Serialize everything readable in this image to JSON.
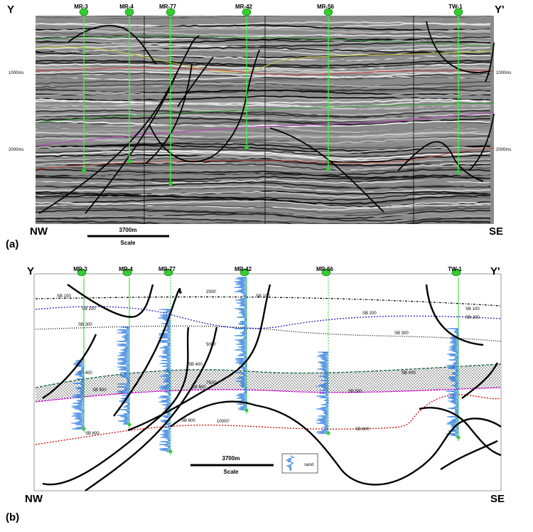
{
  "wells": [
    "MR-3",
    "MR-4",
    "MR-77",
    "MR-42",
    "MR-56",
    "TW-1"
  ],
  "panel_a": {
    "label": "(a)",
    "left_end": "Y",
    "right_end": "Y'",
    "time_labels": [
      "1000ms",
      "2000ms"
    ],
    "left_dir": "NW",
    "right_dir": "SE",
    "scale_length": "3700m",
    "scale_label": "Scale"
  },
  "panel_b": {
    "label": "(b)",
    "left_end": "Y",
    "right_end": "Y'",
    "left_dir": "NW",
    "right_dir": "SE",
    "scale_length": "3700m",
    "scale_label": "Scale",
    "legend_label": "sand",
    "sequence_boundaries": [
      "SB 100",
      "SB 200",
      "SB 300",
      "SB 400",
      "SB 500",
      "SB 600"
    ],
    "depth_labels": [
      "2500'",
      "5000'",
      "7500'",
      "10000'"
    ]
  }
}
